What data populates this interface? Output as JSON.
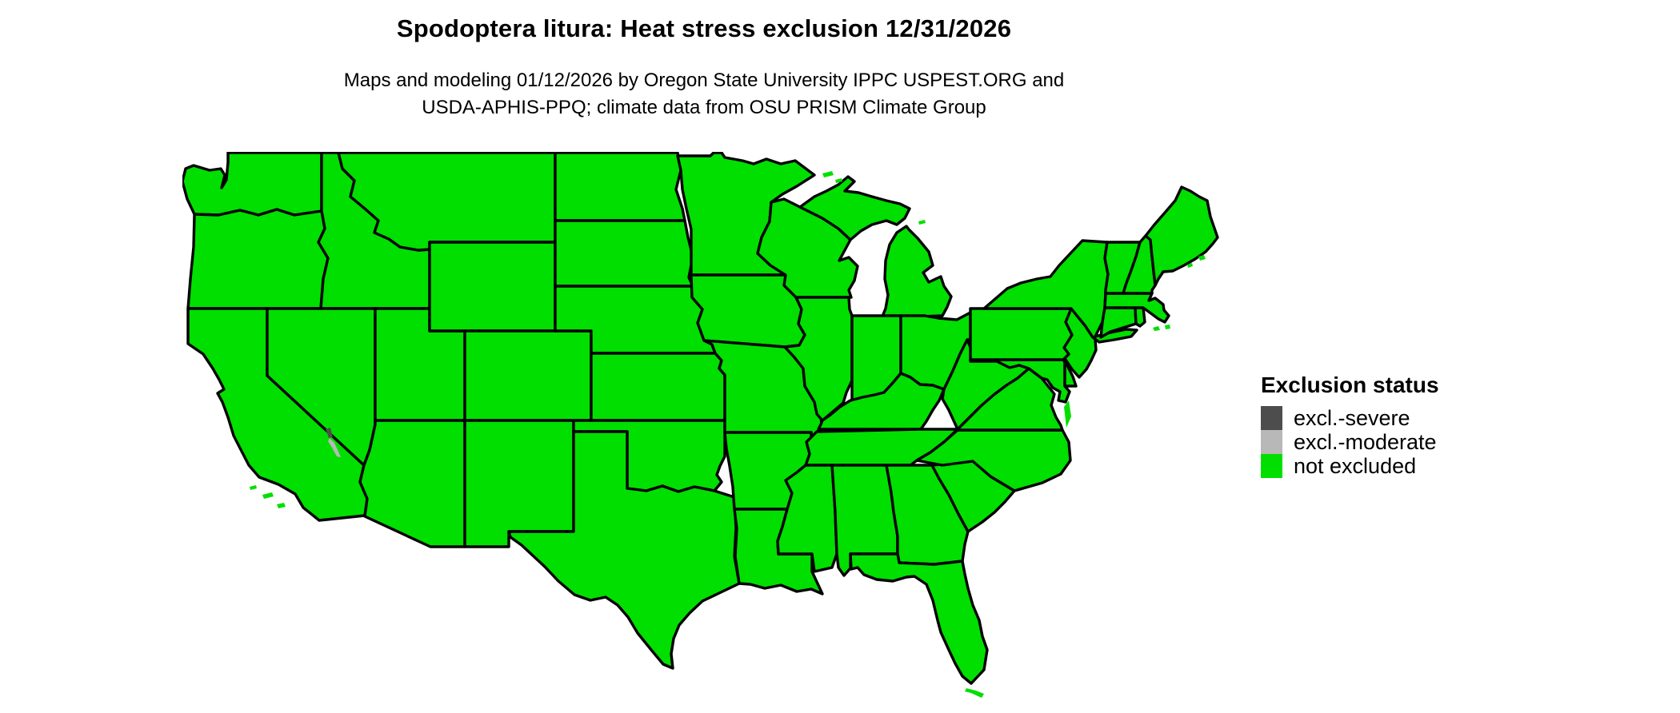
{
  "title": "Spodoptera litura: Heat stress exclusion 12/31/2026",
  "subtitle": {
    "line1": "Maps and modeling 01/12/2026 by Oregon State University IPPC USPEST.ORG and",
    "line2": "USDA-APHIS-PPQ; climate data from OSU PRISM Climate Group"
  },
  "legend": {
    "title": "Exclusion status",
    "items": [
      {
        "id": "excl-severe",
        "label": "excl.-severe",
        "color": "#4d4d4d"
      },
      {
        "id": "excl-moderate",
        "label": "excl.-moderate",
        "color": "#b8b8b8"
      },
      {
        "id": "not-excluded",
        "label": "not excluded",
        "color": "#00df00"
      }
    ]
  },
  "map": {
    "region": "Conterminous United States",
    "background": "#ffffff",
    "border_color": "#000000",
    "water_color": "#ffffff",
    "states": [
      {
        "id": "wa",
        "name": "Washington",
        "status": "not excluded"
      },
      {
        "id": "or",
        "name": "Oregon",
        "status": "not excluded"
      },
      {
        "id": "ca",
        "name": "California",
        "status": "not excluded"
      },
      {
        "id": "id",
        "name": "Idaho",
        "status": "not excluded"
      },
      {
        "id": "nv",
        "name": "Nevada",
        "status": "not excluded"
      },
      {
        "id": "ut",
        "name": "Utah",
        "status": "not excluded"
      },
      {
        "id": "az",
        "name": "Arizona",
        "status": "not excluded"
      },
      {
        "id": "mt",
        "name": "Montana",
        "status": "not excluded"
      },
      {
        "id": "wy",
        "name": "Wyoming",
        "status": "not excluded"
      },
      {
        "id": "co",
        "name": "Colorado",
        "status": "not excluded"
      },
      {
        "id": "nm",
        "name": "New Mexico",
        "status": "not excluded"
      },
      {
        "id": "nd",
        "name": "North Dakota",
        "status": "not excluded"
      },
      {
        "id": "sd",
        "name": "South Dakota",
        "status": "not excluded"
      },
      {
        "id": "ne",
        "name": "Nebraska",
        "status": "not excluded"
      },
      {
        "id": "ks",
        "name": "Kansas",
        "status": "not excluded"
      },
      {
        "id": "ok",
        "name": "Oklahoma",
        "status": "not excluded"
      },
      {
        "id": "tx",
        "name": "Texas",
        "status": "not excluded"
      },
      {
        "id": "mn",
        "name": "Minnesota",
        "status": "not excluded"
      },
      {
        "id": "ia",
        "name": "Iowa",
        "status": "not excluded"
      },
      {
        "id": "mo",
        "name": "Missouri",
        "status": "not excluded"
      },
      {
        "id": "ar",
        "name": "Arkansas",
        "status": "not excluded"
      },
      {
        "id": "la",
        "name": "Louisiana",
        "status": "not excluded"
      },
      {
        "id": "wi",
        "name": "Wisconsin",
        "status": "not excluded"
      },
      {
        "id": "il",
        "name": "Illinois",
        "status": "not excluded"
      },
      {
        "id": "mi",
        "name": "Michigan",
        "status": "not excluded"
      },
      {
        "id": "in",
        "name": "Indiana",
        "status": "not excluded"
      },
      {
        "id": "oh",
        "name": "Ohio",
        "status": "not excluded"
      },
      {
        "id": "ky",
        "name": "Kentucky",
        "status": "not excluded"
      },
      {
        "id": "tn",
        "name": "Tennessee",
        "status": "not excluded"
      },
      {
        "id": "ms",
        "name": "Mississippi",
        "status": "not excluded"
      },
      {
        "id": "al",
        "name": "Alabama",
        "status": "not excluded"
      },
      {
        "id": "ga",
        "name": "Georgia",
        "status": "not excluded"
      },
      {
        "id": "fl",
        "name": "Florida",
        "status": "not excluded"
      },
      {
        "id": "sc",
        "name": "South Carolina",
        "status": "not excluded"
      },
      {
        "id": "nc",
        "name": "North Carolina",
        "status": "not excluded"
      },
      {
        "id": "va",
        "name": "Virginia",
        "status": "not excluded"
      },
      {
        "id": "wv",
        "name": "West Virginia",
        "status": "not excluded"
      },
      {
        "id": "md",
        "name": "Maryland",
        "status": "not excluded"
      },
      {
        "id": "de",
        "name": "Delaware",
        "status": "not excluded"
      },
      {
        "id": "nj",
        "name": "New Jersey",
        "status": "not excluded"
      },
      {
        "id": "pa",
        "name": "Pennsylvania",
        "status": "not excluded"
      },
      {
        "id": "ny",
        "name": "New York",
        "status": "not excluded"
      },
      {
        "id": "ct",
        "name": "Connecticut",
        "status": "not excluded"
      },
      {
        "id": "ri",
        "name": "Rhode Island",
        "status": "not excluded"
      },
      {
        "id": "ma",
        "name": "Massachusetts",
        "status": "not excluded"
      },
      {
        "id": "vt",
        "name": "Vermont",
        "status": "not excluded"
      },
      {
        "id": "nh",
        "name": "New Hampshire",
        "status": "not excluded"
      },
      {
        "id": "me",
        "name": "Maine",
        "status": "not excluded"
      }
    ],
    "anomalies": [
      {
        "id": "anom-severe",
        "region": "Eastern California sliver (Death Valley area)",
        "status": "excl.-severe"
      },
      {
        "id": "anom-moderate",
        "region": "Eastern California sliver (Owens Valley area)",
        "status": "excl.-moderate"
      }
    ]
  }
}
